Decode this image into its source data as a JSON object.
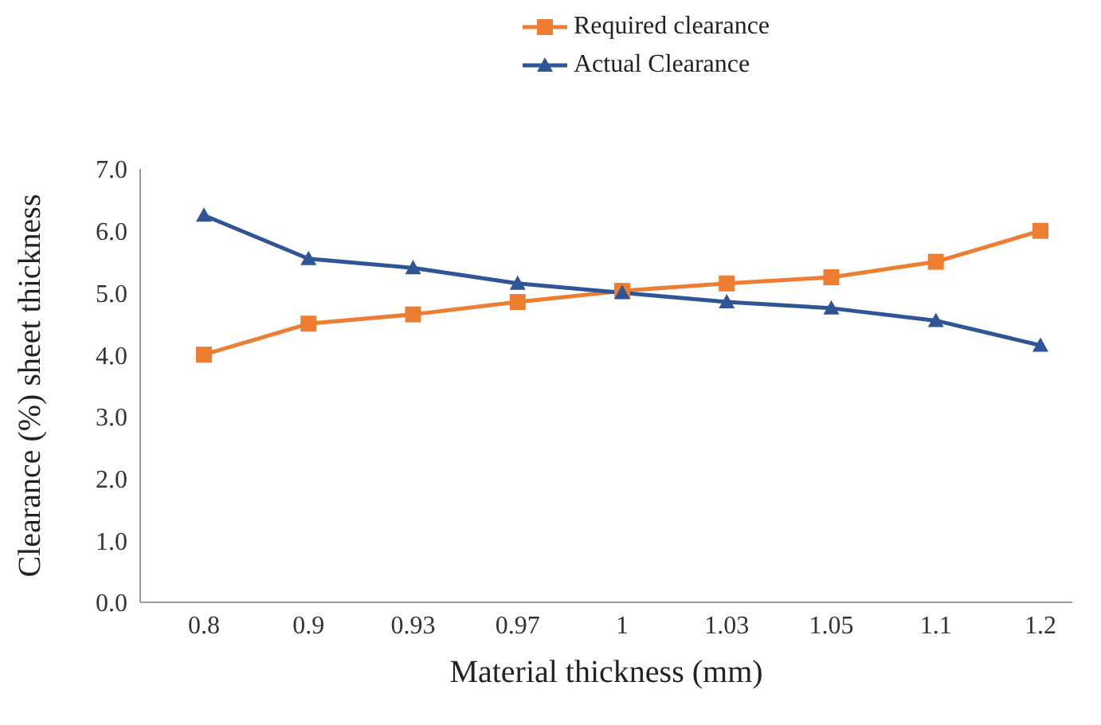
{
  "chart_data": {
    "type": "line",
    "xlabel": "Material thickness (mm)",
    "ylabel": "Clearance (%) sheet thickness",
    "categories": [
      "0.8",
      "0.9",
      "0.93",
      "0.97",
      "1",
      "1.03",
      "1.05",
      "1.1",
      "1.2"
    ],
    "series": [
      {
        "name": "Required clearance",
        "color": "#ed7d31",
        "marker": "square",
        "values": [
          4.0,
          4.5,
          4.65,
          4.85,
          5.03,
          5.15,
          5.25,
          5.5,
          6.0
        ]
      },
      {
        "name": "Actual Clearance",
        "color": "#2f5597",
        "marker": "triangle",
        "values": [
          6.25,
          5.55,
          5.4,
          5.15,
          5.0,
          4.85,
          4.75,
          4.55,
          4.15
        ]
      }
    ],
    "ylim": [
      0,
      7
    ],
    "yticks": [
      {
        "value": 0,
        "label": "0.0"
      },
      {
        "value": 1,
        "label": "1.0"
      },
      {
        "value": 2,
        "label": "2.0"
      },
      {
        "value": 3,
        "label": "3.0"
      },
      {
        "value": 4,
        "label": "4.0"
      },
      {
        "value": 5,
        "label": "5.0"
      },
      {
        "value": 6,
        "label": "6.0"
      },
      {
        "value": 7,
        "label": "7.0"
      }
    ],
    "grid": false,
    "legend": "top"
  }
}
